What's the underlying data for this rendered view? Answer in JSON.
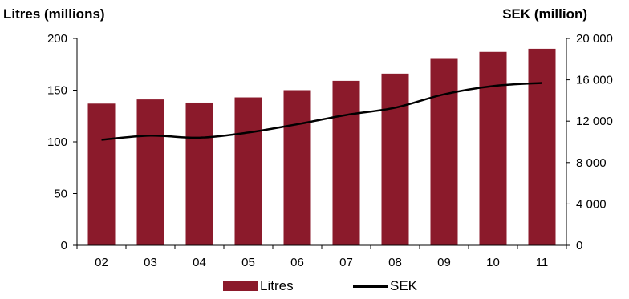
{
  "chart_data": {
    "type": "bar",
    "categories": [
      "02",
      "03",
      "04",
      "05",
      "06",
      "07",
      "08",
      "09",
      "10",
      "11"
    ],
    "series": [
      {
        "name": "Litres",
        "type": "bar",
        "axis": "left",
        "values": [
          137,
          141,
          138,
          143,
          150,
          159,
          166,
          181,
          187,
          190
        ]
      },
      {
        "name": "SEK",
        "type": "line",
        "axis": "right",
        "values": [
          10200,
          10600,
          10400,
          10900,
          11700,
          12600,
          13300,
          14600,
          15400,
          15700
        ]
      }
    ],
    "ylabel": "Litres (millions)",
    "y2label": "SEK (million)",
    "ylim": [
      0,
      200
    ],
    "y2lim": [
      0,
      20000
    ],
    "yticks": [
      "0",
      "50",
      "100",
      "150",
      "200"
    ],
    "y2ticks": [
      "0",
      "4 000",
      "8 000",
      "12 000",
      "16 000",
      "20 000"
    ],
    "grid": false,
    "legend_position": "bottom",
    "colors": {
      "bar": "#8b1a2b",
      "line": "#000000"
    }
  }
}
